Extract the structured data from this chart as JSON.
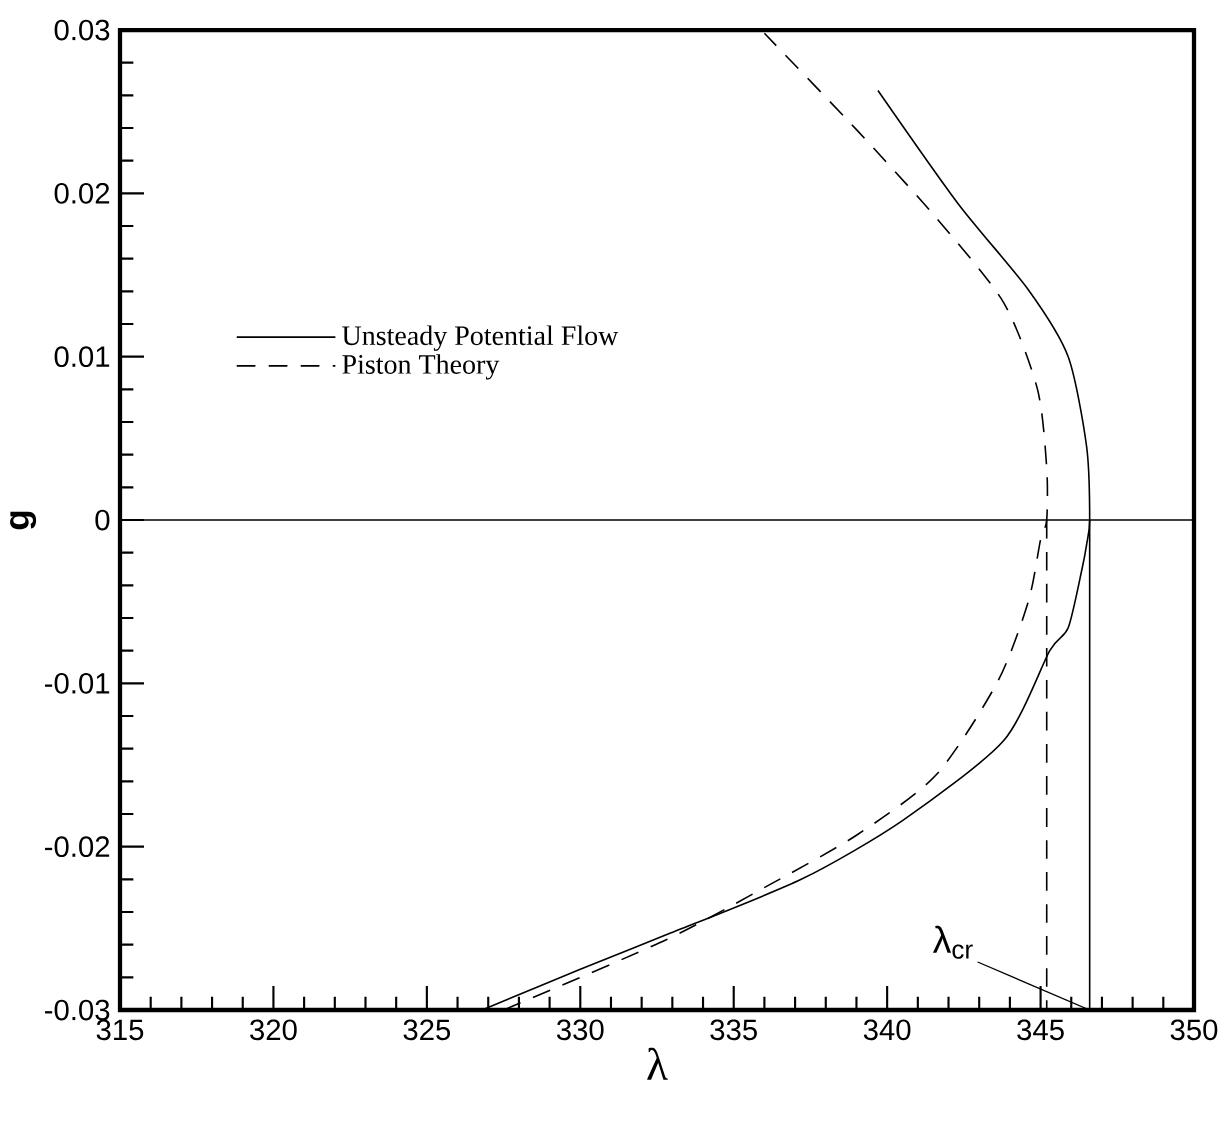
{
  "chart_data": {
    "type": "line",
    "xlabel": "λ",
    "ylabel": "g",
    "xlim": [
      315,
      350
    ],
    "xticks": [
      315,
      320,
      325,
      330,
      335,
      340,
      345,
      350
    ],
    "ylim": [
      -0.03,
      0.03
    ],
    "yticks": [
      -0.03,
      -0.02,
      -0.01,
      0,
      0.01,
      0.02,
      0.03
    ],
    "legend": "left",
    "grid": false,
    "series": [
      {
        "name": "Unsteady Potential Flow",
        "color": "#000000",
        "line_style": "solid",
        "x": [
          326.8,
          330.0,
          332.8,
          337.2,
          340.5,
          343.8,
          345.3,
          345.9,
          346.35,
          346.5,
          346.6,
          346.5,
          345.9,
          344.6,
          342.3,
          339.7
        ],
        "values": [
          -0.03,
          -0.0275,
          -0.0254,
          -0.022,
          -0.0184,
          -0.0135,
          -0.008,
          -0.0066,
          -0.003,
          -0.0015,
          0,
          0.0045,
          0.01,
          0.0141,
          0.0194,
          0.0263
        ]
      },
      {
        "name": "Piston Theory",
        "color": "#000000",
        "line_style": "dashed",
        "x": [
          327.5,
          332.8,
          336.1,
          339.0,
          341.6,
          343.6,
          344.6,
          345.0,
          345.2,
          345.2,
          344.9,
          343.8,
          341.6,
          339.0,
          336.0
        ],
        "values": [
          -0.03,
          -0.0257,
          -0.0224,
          -0.0193,
          -0.0156,
          -0.0099,
          -0.005,
          -0.0012,
          0,
          0.0032,
          0.008,
          0.0133,
          0.0185,
          0.0239,
          0.0298
        ]
      },
      {
        "type": "line",
        "color": "#000000",
        "line_style": "solid",
        "x": [
          346.6,
          346.6
        ],
        "values": [
          0,
          -0.03
        ]
      },
      {
        "type": "line",
        "color": "#000000",
        "line_style": "dashed",
        "x": [
          345.2,
          345.2
        ],
        "values": [
          0,
          -0.03
        ]
      }
    ],
    "ref_lines": [
      {
        "axis": "y",
        "value": 0,
        "color": "#000000"
      }
    ],
    "annotations": [
      {
        "text": "λ$_{cr}$",
        "x": 346.6,
        "y": -0.03
      }
    ]
  }
}
